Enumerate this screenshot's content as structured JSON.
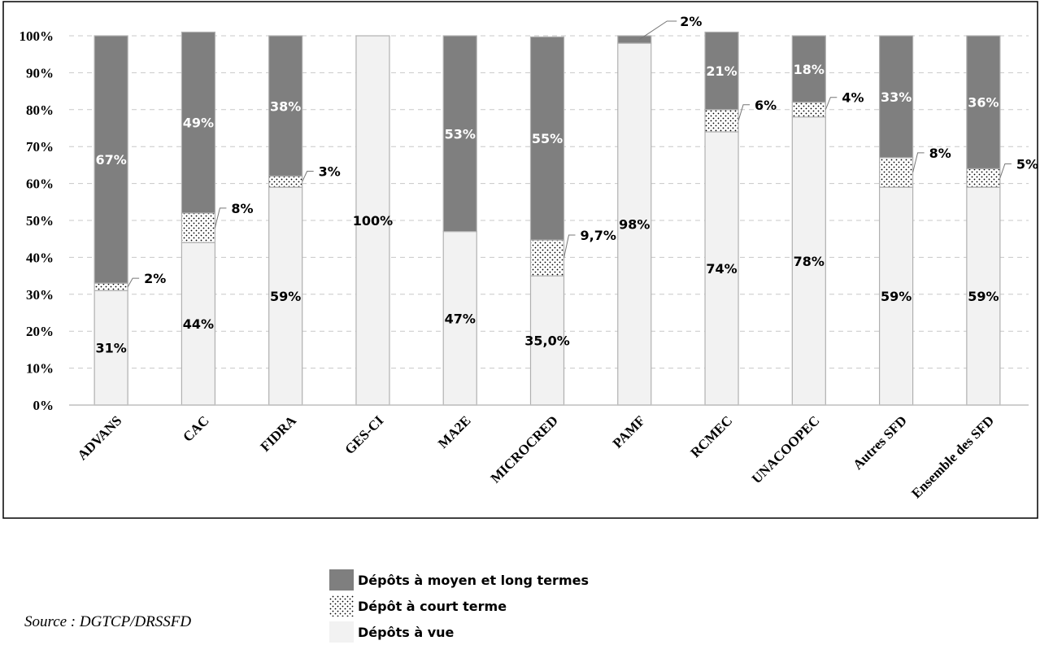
{
  "source_text": "Source : DGTCP/DRSSFD",
  "chart_data": {
    "type": "bar",
    "stacked": true,
    "categories": [
      "ADVANS",
      "CAC",
      "FIDRA",
      "GES-CI",
      "MA2E",
      "MICROCRED",
      "PAMF",
      "RCMEC",
      "UNACOOPEC",
      "Autres SFD",
      "Ensemble des SFD"
    ],
    "series": [
      {
        "name": "Dépôts à vue",
        "values": [
          31,
          44,
          59,
          100,
          47,
          35,
          98,
          74,
          78,
          59,
          59
        ],
        "labels": [
          "31%",
          "44%",
          "59%",
          "100%",
          "47%",
          "35,0%",
          "98%",
          "74%",
          "78%",
          "59%",
          "59%"
        ]
      },
      {
        "name": "Dépôt à court terme",
        "values": [
          2,
          8,
          3,
          0,
          0,
          9.7,
          0,
          6,
          4,
          8,
          5
        ],
        "labels": [
          "2%",
          "8%",
          "3%",
          "",
          "",
          "9,7%",
          "",
          "6%",
          "4%",
          "8%",
          "5%"
        ]
      },
      {
        "name": "Dépôts à moyen et long termes",
        "values": [
          67,
          49,
          38,
          0,
          53,
          55,
          2,
          21,
          18,
          33,
          36
        ],
        "labels": [
          "67%",
          "49%",
          "38%",
          "",
          "53%",
          "55%",
          "2%",
          "21%",
          "18%",
          "33%",
          "36%"
        ]
      }
    ],
    "yticks": [
      "0%",
      "10%",
      "20%",
      "30%",
      "40%",
      "50%",
      "60%",
      "70%",
      "80%",
      "90%",
      "100%"
    ],
    "ylim": [
      0,
      100
    ],
    "grid": true,
    "legend_position": "bottom",
    "colors": {
      "Dépôts à vue": "#f2f2f2",
      "Dépôt à court terme": "#ffffff",
      "Dépôts à moyen et long termes": "#7f7f7f"
    }
  }
}
